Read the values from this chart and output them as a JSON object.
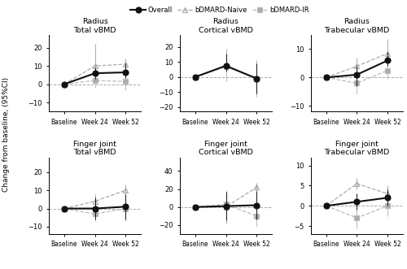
{
  "subplots": [
    {
      "title": "Radius\nTotal vBMD",
      "ylim": [
        -15,
        27
      ],
      "yticks": [
        -10,
        0,
        10,
        20
      ],
      "series": {
        "overall": {
          "y": [
            0,
            6,
            6.5
          ],
          "yerr_lo": [
            0,
            3,
            3
          ],
          "yerr_hi": [
            0,
            3,
            5
          ]
        },
        "naive": {
          "y": [
            0,
            10,
            11
          ],
          "yerr_lo": [
            0,
            2,
            2
          ],
          "yerr_hi": [
            0,
            12,
            3
          ]
        },
        "ir": {
          "y": [
            0,
            2,
            1.5
          ],
          "yerr_lo": [
            0,
            4,
            5
          ],
          "yerr_hi": [
            0,
            4,
            5
          ]
        }
      }
    },
    {
      "title": "Radius\nCortical vBMD",
      "ylim": [
        -23,
        28
      ],
      "yticks": [
        -20,
        -10,
        0,
        10,
        20
      ],
      "series": {
        "overall": {
          "y": [
            0,
            7.5,
            -1
          ],
          "yerr_lo": [
            0,
            4,
            10
          ],
          "yerr_hi": [
            0,
            8,
            10
          ]
        },
        "naive": {
          "y": [
            0,
            7,
            -1
          ],
          "yerr_lo": [
            0,
            10,
            12
          ],
          "yerr_hi": [
            0,
            12,
            12
          ]
        },
        "ir": {
          "y": [
            0,
            7,
            -1
          ],
          "yerr_lo": [
            0,
            10,
            12
          ],
          "yerr_hi": [
            0,
            12,
            12
          ]
        }
      }
    },
    {
      "title": "Radius\nTrabecular vBMD",
      "ylim": [
        -12,
        15
      ],
      "yticks": [
        -10,
        0,
        10
      ],
      "series": {
        "overall": {
          "y": [
            0,
            1,
            6
          ],
          "yerr_lo": [
            0,
            4,
            2
          ],
          "yerr_hi": [
            0,
            3,
            3
          ]
        },
        "naive": {
          "y": [
            0,
            4,
            8.5
          ],
          "yerr_lo": [
            0,
            2,
            1
          ],
          "yerr_hi": [
            0,
            3,
            5
          ]
        },
        "ir": {
          "y": [
            0,
            -2,
            2.5
          ],
          "yerr_lo": [
            0,
            4,
            3
          ],
          "yerr_hi": [
            0,
            3,
            3
          ]
        }
      }
    },
    {
      "title": "Finger joint\nTotal vBMD",
      "ylim": [
        -14,
        28
      ],
      "yticks": [
        -10,
        0,
        10,
        20
      ],
      "series": {
        "overall": {
          "y": [
            0,
            0,
            1
          ],
          "yerr_lo": [
            0,
            6,
            7
          ],
          "yerr_hi": [
            0,
            6,
            7
          ]
        },
        "naive": {
          "y": [
            0,
            4,
            10
          ],
          "yerr_lo": [
            0,
            5,
            2
          ],
          "yerr_hi": [
            0,
            4,
            3
          ]
        },
        "ir": {
          "y": [
            0,
            -3,
            0
          ],
          "yerr_lo": [
            0,
            4,
            7
          ],
          "yerr_hi": [
            0,
            5,
            8
          ]
        }
      }
    },
    {
      "title": "Finger joint\nCortical vBMD",
      "ylim": [
        -30,
        55
      ],
      "yticks": [
        -20,
        0,
        20,
        40
      ],
      "series": {
        "overall": {
          "y": [
            0,
            1,
            2
          ],
          "yerr_lo": [
            0,
            16,
            16
          ],
          "yerr_hi": [
            0,
            16,
            16
          ]
        },
        "naive": {
          "y": [
            0,
            0,
            22
          ],
          "yerr_lo": [
            0,
            18,
            5
          ],
          "yerr_hi": [
            0,
            18,
            5
          ]
        },
        "ir": {
          "y": [
            0,
            3,
            -10
          ],
          "yerr_lo": [
            0,
            16,
            12
          ],
          "yerr_hi": [
            0,
            16,
            12
          ]
        }
      }
    },
    {
      "title": "Finger joint\nTrabecular vBMD",
      "ylim": [
        -7,
        12
      ],
      "yticks": [
        -5,
        0,
        5,
        10
      ],
      "series": {
        "overall": {
          "y": [
            0,
            1,
            2
          ],
          "yerr_lo": [
            0,
            2,
            2
          ],
          "yerr_hi": [
            0,
            2,
            2
          ]
        },
        "naive": {
          "y": [
            0,
            5.5,
            3
          ],
          "yerr_lo": [
            0,
            1.5,
            2
          ],
          "yerr_hi": [
            0,
            1.5,
            2
          ]
        },
        "ir": {
          "y": [
            0,
            -3,
            0
          ],
          "yerr_lo": [
            0,
            2.5,
            2.5
          ],
          "yerr_hi": [
            0,
            2.5,
            2.5
          ]
        }
      }
    }
  ],
  "xticklabels": [
    "Baseline",
    "Week 24",
    "Week 52"
  ],
  "ylabel": "Change from baseline, (95%CI)",
  "colors": {
    "overall": "#111111",
    "naive": "#aaaaaa",
    "ir": "#bbbbbb"
  },
  "markerfacecolors": {
    "overall": "#111111",
    "naive": "none",
    "ir": "#aaaaaa"
  },
  "linestyles": {
    "overall": "-",
    "naive": "--",
    "ir": "--"
  },
  "markers": {
    "overall": "o",
    "naive": "^",
    "ir": "s"
  },
  "markersizes": {
    "overall": 5,
    "naive": 4,
    "ir": 4
  },
  "linewidths": {
    "overall": 1.5,
    "naive": 0.9,
    "ir": 0.9
  },
  "zorders": {
    "overall": 4,
    "naive": 2,
    "ir": 3
  },
  "legend_labels": {
    "overall": "Overall",
    "naive": "bDMARD-Naive",
    "ir": "bDMARD-IR"
  }
}
